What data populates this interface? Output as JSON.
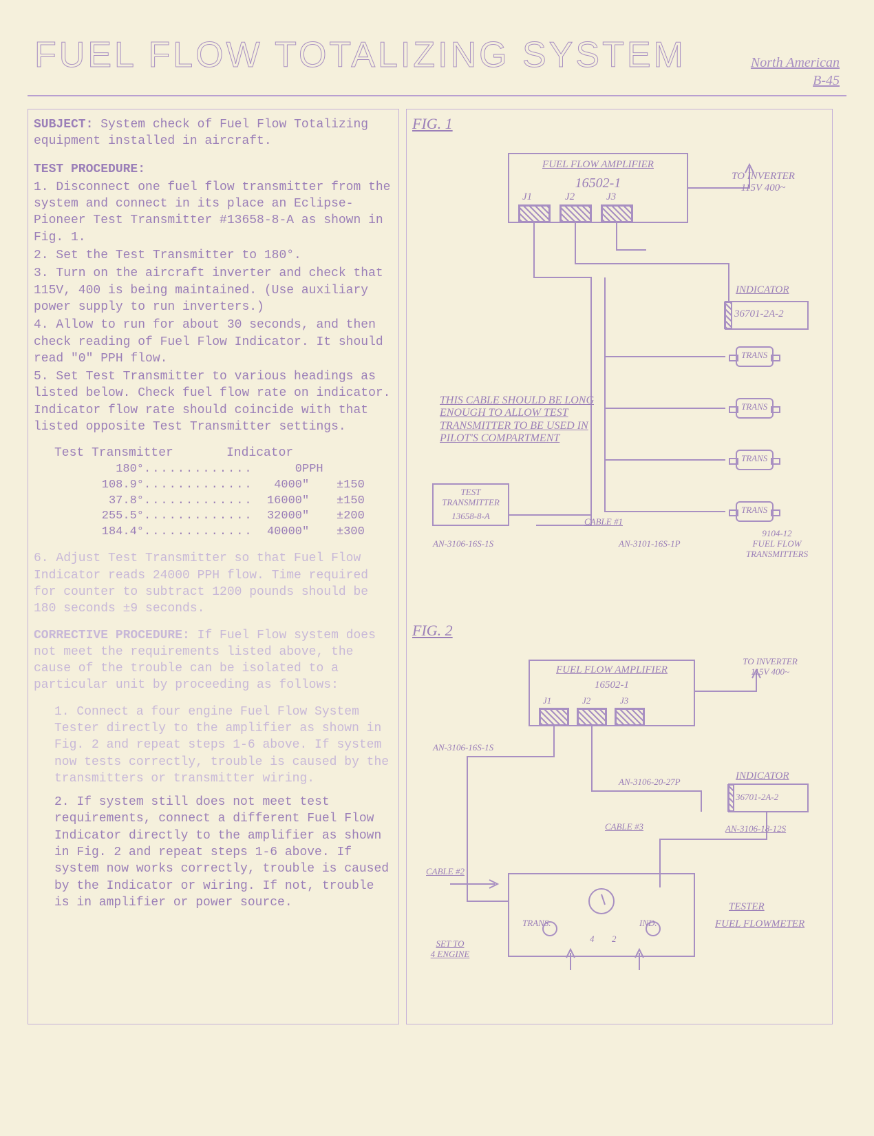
{
  "header": {
    "title": "FUEL FLOW TOTALIZING SYSTEM",
    "subtitle_line1": "North American",
    "subtitle_line2": "B-45"
  },
  "left": {
    "subject_label": "SUBJECT:",
    "subject_text": "System check of Fuel Flow Totalizing equipment installed in aircraft.",
    "test_head": "TEST PROCEDURE:",
    "steps": {
      "s1": "1. Disconnect one fuel flow transmitter from the system and connect in its place an Eclipse-Pioneer Test Transmitter #13658-8-A as shown in Fig. 1.",
      "s2": "2. Set the Test Transmitter to 180°.",
      "s3": "3. Turn on the aircraft inverter and check that 115V, 400   is being maintained. (Use auxiliary power supply to run inverters.)",
      "s4": "4. Allow to run for about 30 seconds, and then check reading of Fuel Flow Indicator. It should read \"0\" PPH flow.",
      "s5": "5. Set Test Transmitter to various headings as listed below. Check fuel flow rate on indicator. Indicator flow rate should coincide with that listed opposite Test Transmitter settings."
    },
    "table": {
      "h1": "Test Transmitter",
      "h2": "Indicator",
      "rows": [
        {
          "a": "180°",
          "b": "0",
          "u": "PPH",
          "t": ""
        },
        {
          "a": "108.9°",
          "b": "4000",
          "u": "\"",
          "t": "±150"
        },
        {
          "a": "37.8°",
          "b": "16000",
          "u": "\"",
          "t": "±150"
        },
        {
          "a": "255.5°",
          "b": "32000",
          "u": "\"",
          "t": "±200"
        },
        {
          "a": "184.4°",
          "b": "40000",
          "u": "\"",
          "t": "±300"
        }
      ]
    },
    "step6": "6. Adjust Test Transmitter so that Fuel Flow Indicator reads 24000 PPH flow. Time required for counter to subtract 1200 pounds should be 180 seconds ±9 seconds.",
    "corr_head": "CORRECTIVE PROCEDURE:",
    "corr_text": "If Fuel Flow system does not meet the requirements listed above, the cause of the trouble can be isolated to a particular unit by proceeding as follows:",
    "corr1": "1. Connect a four engine Fuel Flow System Tester directly to the amplifier as shown in Fig. 2 and repeat steps 1-6 above. If system now tests correctly, trouble is caused by the transmitters or transmitter wiring.",
    "corr2": "2. If system still does not meet test requirements, connect a different Fuel Flow Indicator directly to the amplifier as shown in Fig. 2 and repeat steps 1-6 above. If system now works correctly, trouble is caused by the Indicator or wiring. If not, trouble is in amplifier or power source."
  },
  "fig1": {
    "label": "FIG. 1",
    "amp_title": "FUEL FLOW AMPLIFIER",
    "amp_num": "16502-1",
    "j1": "J1",
    "j2": "J2",
    "j3": "J3",
    "to_inv": "TO INVERTER\n115V 400~",
    "indicator": "INDICATOR",
    "indicator_num": "36701-2A-2",
    "trans": "TRANS",
    "cable_note": "THIS CABLE SHOULD BE LONG ENOUGH TO ALLOW TEST TRANSMITTER TO BE USED IN PILOT'S COMPARTMENT",
    "test_trans": "TEST\nTRANSMITTER",
    "test_trans_num": "13658-8-A",
    "cable1": "CABLE #1",
    "an1": "AN-3106-16S-1S",
    "an2": "AN-3101-16S-1P",
    "ffxmit": "9104-12\nFUEL FLOW\nTRANSMITTERS"
  },
  "fig2": {
    "label": "FIG. 2",
    "amp_title": "FUEL FLOW AMPLIFIER",
    "amp_num": "16502-1",
    "j1": "J1",
    "j2": "J2",
    "j3": "J3",
    "to_inv": "TO INVERTER\n115V 400~",
    "an_top": "AN-3106-16S-1S",
    "an_mid": "AN-3106-20-27P",
    "indicator": "INDICATOR",
    "indicator_num": "36701-2A-2",
    "cable3": "CABLE #3",
    "an_right": "AN-3106-18-12S",
    "cable2": "CABLE #2",
    "trans": "TRANS.",
    "ind": "IND.",
    "four": "4",
    "two": "2",
    "set": "SET TO\n4 ENGINE",
    "tester": "TESTER",
    "flowmeter": "FUEL FLOWMETER"
  },
  "style": {
    "text_color": "#9b7fb8",
    "bg_color": "#f5f0dc",
    "line_color": "#a88fc2"
  }
}
